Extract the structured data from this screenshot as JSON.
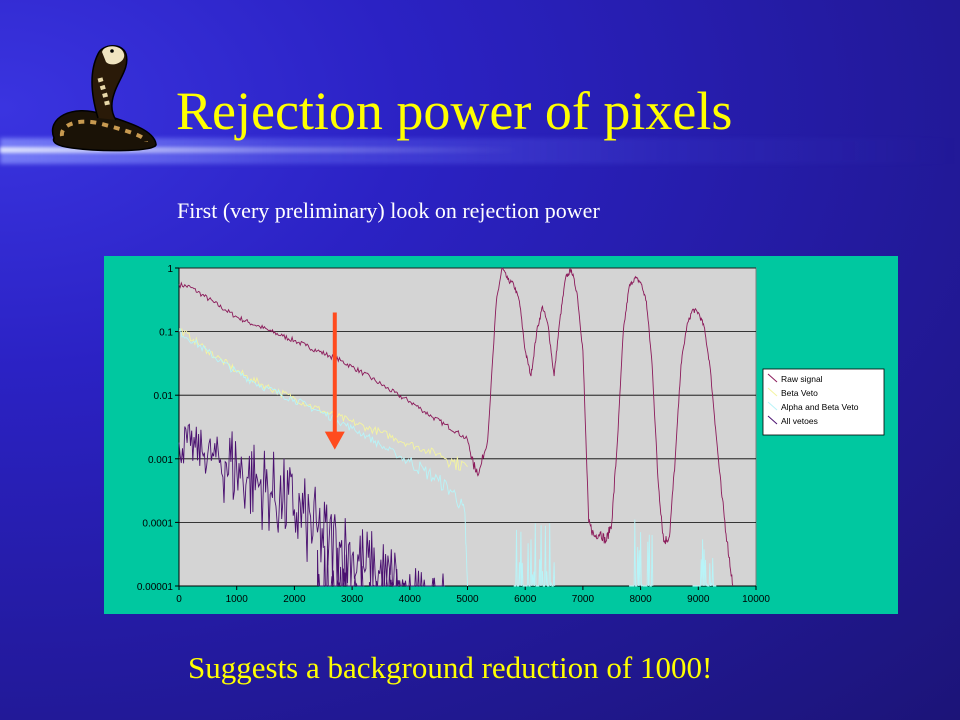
{
  "slide": {
    "title": "Rejection power of pixels",
    "subtitle": "First (very preliminary) look on rejection power",
    "caption": "Suggests a background reduction of 1000!",
    "logo_icon": "cobra-snake-icon",
    "annotation_icon": "down-arrow-icon"
  },
  "colors": {
    "background": "#2b22c4",
    "title": "#ffff00",
    "subtitle": "#ffffff",
    "chart_frame": "#00c8a0",
    "plot_area": "#d4d4d4",
    "arrow": "#ff4b1e"
  },
  "chart_data": {
    "type": "line",
    "title": "",
    "xlabel": "",
    "ylabel": "",
    "x_scale": "linear",
    "y_scale": "log",
    "xlim": [
      0,
      10000
    ],
    "ylim": [
      1e-05,
      1
    ],
    "grid": "horizontal",
    "legend_position": "right",
    "x_tick_labels": [
      "0",
      "1000",
      "2000",
      "3000",
      "4000",
      "5000",
      "6000",
      "7000",
      "8000",
      "9000",
      "10000"
    ],
    "x_ticks": [
      0,
      1000,
      2000,
      3000,
      4000,
      5000,
      6000,
      7000,
      8000,
      9000,
      10000
    ],
    "y_tick_labels": [
      "1",
      "0.1",
      "0.01",
      "0.001",
      "0.0001",
      "0.00001"
    ],
    "y_ticks": [
      1,
      0.1,
      0.01,
      0.001,
      0.0001,
      1e-05
    ],
    "annotation": {
      "type": "arrow",
      "x": 2700,
      "y_from": 0.2,
      "y_to": 0.0015,
      "color": "#ff4b1e"
    },
    "series": [
      {
        "name": "Raw signal",
        "color": "#8b1a5a",
        "x": [
          0,
          200,
          400,
          600,
          800,
          1000,
          1200,
          1400,
          1600,
          1800,
          2000,
          2200,
          2400,
          2600,
          2800,
          3000,
          3200,
          3400,
          3600,
          3800,
          4000,
          4200,
          4400,
          4600,
          4800,
          5000,
          5100,
          5200,
          5350,
          5500,
          5600,
          5700,
          5800,
          5900,
          6000,
          6100,
          6200,
          6300,
          6400,
          6500,
          6600,
          6700,
          6800,
          6900,
          7000,
          7100,
          7200,
          7300,
          7400,
          7500,
          7600,
          7700,
          7800,
          7900,
          8000,
          8100,
          8200,
          8300,
          8400,
          8500,
          8600,
          8700,
          8800,
          8900,
          9000,
          9100,
          9200,
          9300,
          9400,
          9500,
          9600
        ],
        "values": [
          0.55,
          0.5,
          0.38,
          0.29,
          0.22,
          0.17,
          0.14,
          0.12,
          0.1,
          0.085,
          0.072,
          0.06,
          0.05,
          0.042,
          0.035,
          0.028,
          0.022,
          0.017,
          0.013,
          0.01,
          0.008,
          0.006,
          0.0045,
          0.0035,
          0.0027,
          0.002,
          0.0008,
          0.0006,
          0.002,
          0.3,
          1.0,
          0.65,
          0.55,
          0.3,
          0.05,
          0.02,
          0.1,
          0.25,
          0.12,
          0.02,
          0.15,
          0.7,
          0.95,
          0.4,
          0.05,
          0.0001,
          6e-05,
          7e-05,
          5e-05,
          0.0001,
          0.002,
          0.1,
          0.5,
          0.7,
          0.6,
          0.3,
          0.03,
          0.0005,
          5e-05,
          6e-05,
          0.001,
          0.03,
          0.12,
          0.22,
          0.2,
          0.12,
          0.03,
          0.003,
          0.0003,
          5e-05,
          1e-05
        ],
        "noise_ranges": []
      },
      {
        "name": "Beta Veto",
        "color": "#f4f4a0",
        "x": [
          0,
          250,
          500,
          750,
          1000,
          1250,
          1500,
          1750,
          2000,
          2250,
          2500,
          2750,
          3000,
          3250,
          3500,
          3750,
          4000,
          4250,
          4500,
          4750,
          5000
        ],
        "values": [
          0.11,
          0.075,
          0.05,
          0.035,
          0.024,
          0.018,
          0.014,
          0.011,
          0.009,
          0.007,
          0.0056,
          0.0046,
          0.0038,
          0.0031,
          0.0026,
          0.0021,
          0.0017,
          0.0014,
          0.0012,
          0.0009,
          0.00075
        ],
        "noise_ranges": []
      },
      {
        "name": "Alpha and Beta Veto",
        "color": "#b8f4f8",
        "x": [
          0,
          250,
          500,
          750,
          1000,
          1250,
          1500,
          1750,
          2000,
          2250,
          2500,
          2750,
          3000,
          3250,
          3500,
          3750,
          4000,
          4250,
          4500,
          4750,
          4950,
          5000
        ],
        "values": [
          0.1,
          0.07,
          0.048,
          0.033,
          0.023,
          0.017,
          0.013,
          0.0105,
          0.0085,
          0.0066,
          0.0052,
          0.004,
          0.003,
          0.0023,
          0.0016,
          0.0012,
          0.0009,
          0.00065,
          0.00045,
          0.0003,
          0.00015,
          1e-05
        ],
        "noise_ranges": [
          [
            5800,
            6500,
            0.0001
          ],
          [
            7800,
            8200,
            0.00015
          ],
          [
            8900,
            9300,
            6e-05
          ]
        ]
      },
      {
        "name": "All vetoes",
        "color": "#4a1070",
        "x": [
          0,
          200,
          400,
          600,
          800,
          1000,
          1200,
          1400,
          1600,
          1800,
          2000,
          2200,
          2400,
          2600,
          2800,
          3000,
          3200,
          3400,
          3600,
          3800
        ],
        "values": [
          0.0018,
          0.0016,
          0.0013,
          0.0011,
          0.0009,
          0.0007,
          0.0005,
          0.0004,
          0.0003,
          0.00022,
          0.00016,
          0.0001,
          7e-05,
          5e-05,
          4e-05,
          3e-05,
          2e-05,
          1.5e-05,
          1.2e-05,
          1e-05
        ],
        "noise_ranges": [
          [
            2400,
            3200,
            5e-05
          ],
          [
            3300,
            4600,
            2e-05
          ]
        ]
      }
    ]
  }
}
